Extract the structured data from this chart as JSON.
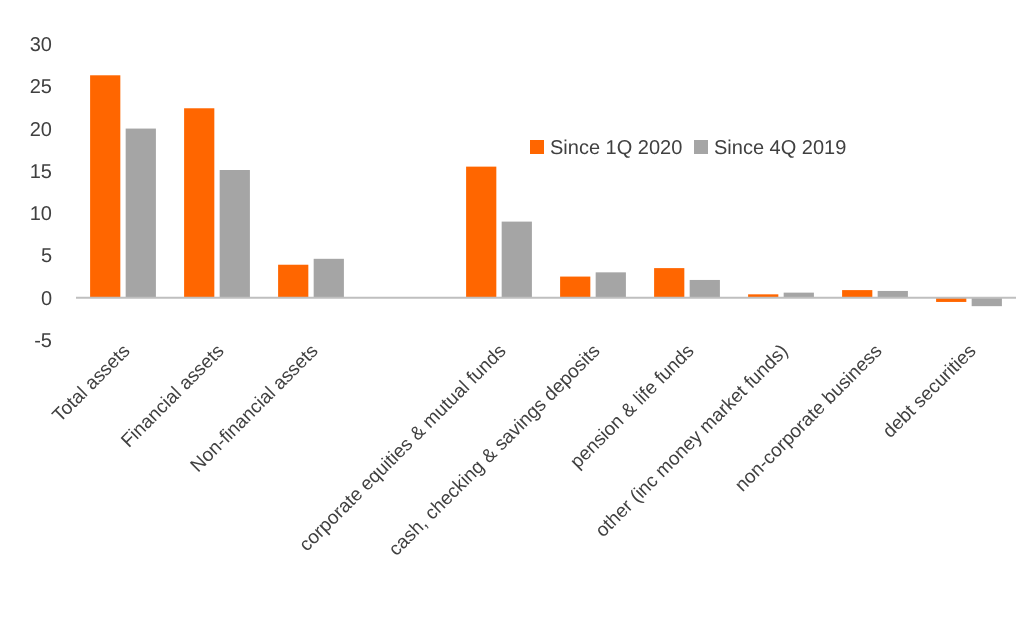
{
  "chart_data": {
    "type": "bar",
    "categories": [
      "Total assets",
      "Financial assets",
      "Non-financial assets",
      null,
      "corporate equities & mutual funds",
      "cash, checking & savings deposits",
      "pension & life funds",
      "other (inc money market funds)",
      "non-corporate business",
      "debt securities"
    ],
    "series": [
      {
        "name": "Since 1Q 2020",
        "color": "#ff6600",
        "values": [
          26.3,
          22.4,
          3.9,
          null,
          15.5,
          2.5,
          3.5,
          0.4,
          0.9,
          -0.5
        ]
      },
      {
        "name": "Since 4Q  2019",
        "color": "#a5a5a5",
        "values": [
          20,
          15.1,
          4.6,
          null,
          9,
          3,
          2.1,
          0.6,
          0.8,
          -1
        ]
      }
    ],
    "ylim": [
      -5,
      30
    ],
    "yticks": [
      -5,
      0,
      5,
      10,
      15,
      20,
      25,
      30
    ],
    "grid": false,
    "legend": "top right"
  }
}
